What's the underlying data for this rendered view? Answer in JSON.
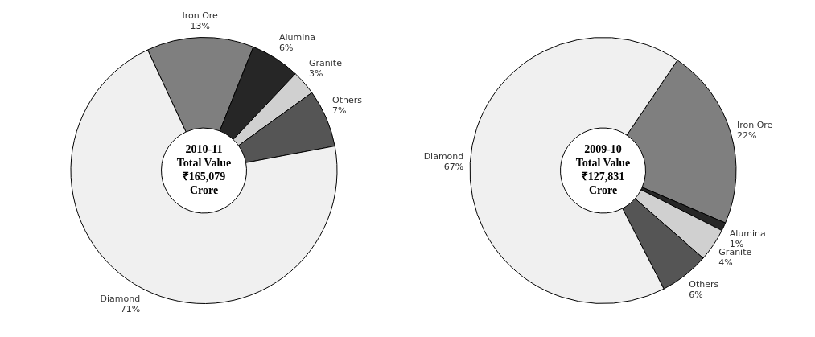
{
  "chart_data": [
    {
      "type": "donut",
      "title": "2010-11\nTotal Value\n₹165,079\nCrore",
      "categories": [
        "Iron Ore",
        "Alumina",
        "Granite",
        "Others",
        "Diamond"
      ],
      "values": [
        13,
        6,
        3,
        7,
        71
      ],
      "value_labels": [
        "13%",
        "6%",
        "3%",
        "7%",
        "71%"
      ],
      "colors": [
        "#7f7f7f",
        "#262626",
        "#d0d0d0",
        "#555555",
        "#f0f0f0"
      ],
      "legend": false
    },
    {
      "type": "donut",
      "title": "2009-10\nTotal Value\n₹127,831\nCrore",
      "categories": [
        "Iron Ore",
        "Alumina",
        "Granite",
        "Others",
        "Diamond"
      ],
      "values": [
        22,
        1,
        4,
        6,
        67
      ],
      "value_labels": [
        "22%",
        "1%",
        "4%",
        "6%",
        "67%"
      ],
      "colors": [
        "#7f7f7f",
        "#262626",
        "#d0d0d0",
        "#555555",
        "#f0f0f0"
      ],
      "legend": false
    }
  ]
}
